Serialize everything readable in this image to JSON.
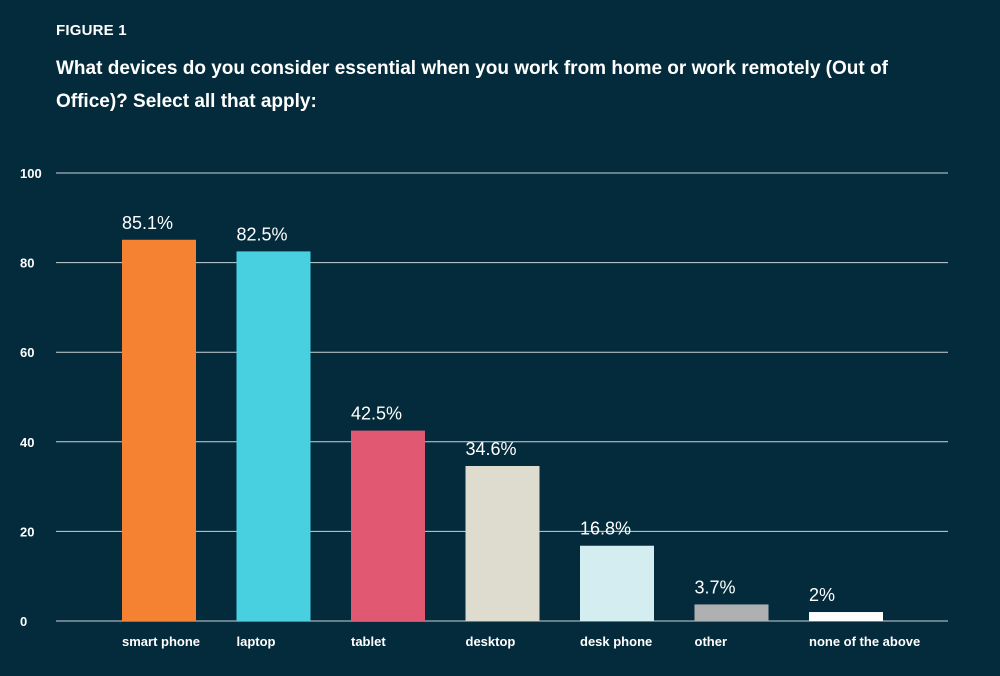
{
  "figure_label": "FIGURE 1",
  "chart_data": {
    "type": "bar",
    "title": "What devices do you consider essential when you work from home or work remotely (Out of Office)? Select all that apply:",
    "xlabel": "",
    "ylabel": "",
    "ylim": [
      0,
      100
    ],
    "yticks": [
      0,
      20,
      40,
      60,
      80,
      100
    ],
    "grid": true,
    "categories": [
      "smart phone",
      "laptop",
      "tablet",
      "desktop",
      "desk phone",
      "other",
      "none of the above"
    ],
    "values": [
      85.1,
      82.5,
      42.5,
      34.6,
      16.8,
      3.7,
      2
    ],
    "data_labels": [
      "85.1%",
      "82.5%",
      "42.5%",
      "34.6%",
      "16.8%",
      "3.7%",
      "2%"
    ],
    "colors": [
      "#f58233",
      "#48cfe0",
      "#e05872",
      "#dedbcf",
      "#d4edf1",
      "#aeb0b1",
      "#ffffff"
    ]
  },
  "style": {
    "background": "#042b3b"
  }
}
